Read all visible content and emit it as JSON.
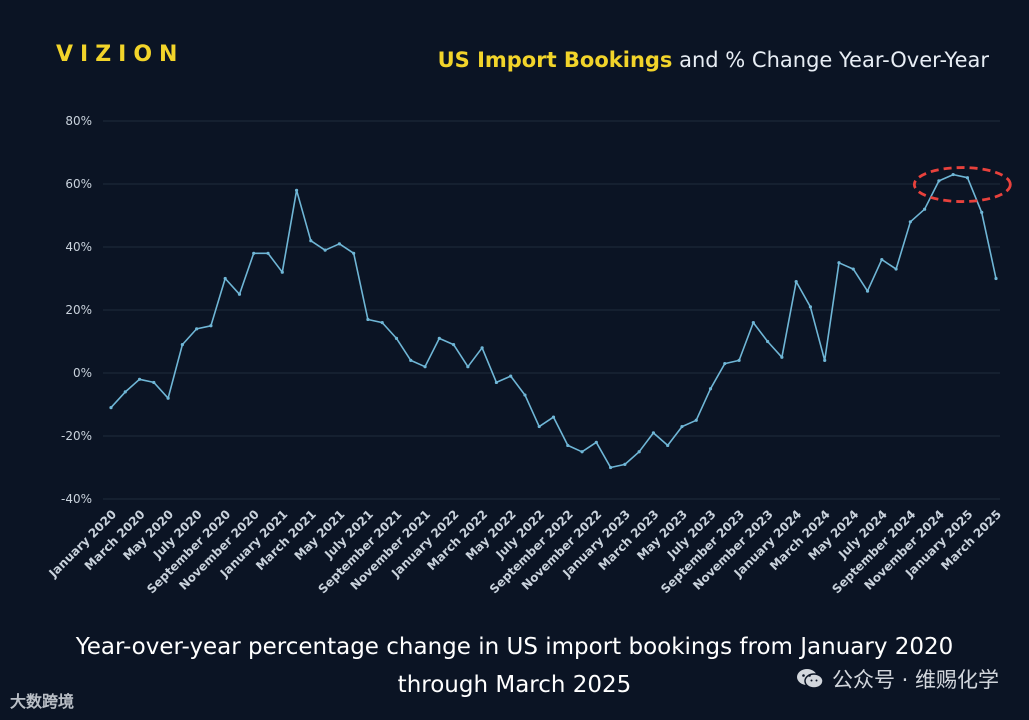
{
  "logo": "VIZION",
  "title": {
    "highlight": "US Import Bookings",
    "rest": " and % Change Year-Over-Year"
  },
  "caption": {
    "line1": "Year-over-year percentage change in US import bookings from January 2020",
    "line2": "through March 2025"
  },
  "watermark_left": "大数跨境",
  "watermark_right": "公众号 · 维赐化学",
  "colors": {
    "background": "#0b1424",
    "line": "#6fb6d6",
    "grid": "#1f2b3d",
    "logo": "#f2d42a",
    "highlight_ellipse": "#e8413c"
  },
  "chart_data": {
    "type": "line",
    "ylim": [
      -40,
      80
    ],
    "yticks": [
      -40,
      -20,
      0,
      20,
      40,
      60,
      80
    ],
    "ytick_labels": [
      "-40%",
      "-20%",
      "0%",
      "20%",
      "40%",
      "60%",
      "80%"
    ],
    "x_tick_labels": [
      "January 2020",
      "March 2020",
      "May 2020",
      "July 2020",
      "September 2020",
      "November 2020",
      "January 2021",
      "March 2021",
      "May 2021",
      "July 2021",
      "September 2021",
      "November 2021",
      "January 2022",
      "March 2022",
      "May 2022",
      "July 2022",
      "September 2022",
      "November 2022",
      "January 2023",
      "March 2023",
      "May 2023",
      "July 2023",
      "September 2023",
      "November 2023",
      "January 2024",
      "March 2024",
      "May 2024",
      "July 2024",
      "September 2024",
      "November 2024",
      "January 2025",
      "March 2025"
    ],
    "grid": true,
    "annotation": "dashed ellipse around late-2024 peak",
    "series": [
      {
        "x": [
          "Jan 2020",
          "Feb 2020",
          "Mar 2020",
          "Apr 2020",
          "May 2020",
          "Jun 2020",
          "Jul 2020",
          "Aug 2020",
          "Sep 2020",
          "Oct 2020",
          "Nov 2020",
          "Dec 2020",
          "Jan 2021",
          "Feb 2021",
          "Mar 2021",
          "Apr 2021",
          "May 2021",
          "Jun 2021",
          "Jul 2021",
          "Aug 2021",
          "Sep 2021",
          "Oct 2021",
          "Nov 2021",
          "Dec 2021",
          "Jan 2022",
          "Feb 2022",
          "Mar 2022",
          "Apr 2022",
          "May 2022",
          "Jun 2022",
          "Jul 2022",
          "Aug 2022",
          "Sep 2022",
          "Oct 2022",
          "Nov 2022",
          "Dec 2022",
          "Jan 2023",
          "Feb 2023",
          "Mar 2023",
          "Apr 2023",
          "May 2023",
          "Jun 2023",
          "Jul 2023",
          "Aug 2023",
          "Sep 2023",
          "Oct 2023",
          "Nov 2023",
          "Dec 2023",
          "Jan 2024",
          "Feb 2024",
          "Mar 2024",
          "Apr 2024",
          "May 2024",
          "Jun 2024",
          "Jul 2024",
          "Aug 2024",
          "Sep 2024",
          "Oct 2024",
          "Nov 2024",
          "Dec 2024",
          "Jan 2025",
          "Feb 2025",
          "Mar 2025"
        ],
        "values": [
          -11,
          -6,
          -2,
          -3,
          -8,
          9,
          14,
          15,
          30,
          25,
          38,
          38,
          32,
          58,
          42,
          39,
          41,
          38,
          17,
          16,
          11,
          4,
          2,
          11,
          9,
          2,
          8,
          -3,
          -1,
          -7,
          -17,
          -14,
          -23,
          -25,
          -22,
          -30,
          -29,
          -25,
          -19,
          -23,
          -17,
          -15,
          -5,
          3,
          4,
          16,
          10,
          5,
          29,
          21,
          4,
          35,
          33,
          26,
          36,
          33,
          48,
          52,
          61,
          63,
          62,
          51,
          30
        ]
      }
    ]
  }
}
